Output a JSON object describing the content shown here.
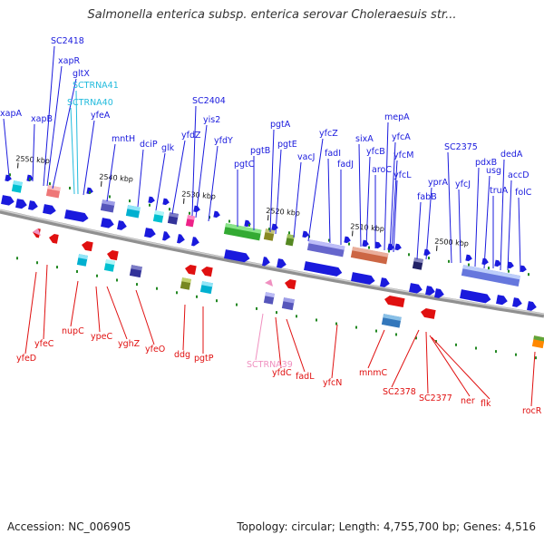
{
  "header": {
    "title": "Salmonella enterica subsp. enterica serovar Choleraesuis str..."
  },
  "footer": {
    "accession": "Accession: NC_006905",
    "summary": "Topology: circular; Length: 4,755,700 bp; Genes: 4,516"
  },
  "colors": {
    "forward": "#1a1add",
    "reverse": "#e01010",
    "trna": "#22bbdd",
    "trna_reverse": "#f090c0",
    "backbone": "#909090",
    "tick": "#228822"
  },
  "scale_ticks": [
    "2550 kbp",
    "2540 kbp",
    "2530 kbp",
    "2520 kbp",
    "2510 kbp",
    "2500 kbp"
  ],
  "forward_labels": [
    "xapA",
    "xapB",
    "SC2418",
    "xapR",
    "gltX",
    "SCTRNA41",
    "SCTRNA40",
    "yfeA",
    "mntH",
    "dciP",
    "glk",
    "yfdZ",
    "SC2404",
    "yis2",
    "yfdY",
    "pgtC",
    "pgtB",
    "pgtA",
    "pgtE",
    "vacJ",
    "yfcZ",
    "fadI",
    "fadJ",
    "sixA",
    "yfcB",
    "aroC",
    "mepA",
    "yfcA",
    "yfcM",
    "yfcL",
    "fabB",
    "yprA",
    "SC2375",
    "yfcJ",
    "pdxB",
    "usg",
    "truA",
    "dedA",
    "accD",
    "folC"
  ],
  "reverse_labels": [
    "yfeD",
    "yfeC",
    "nupC",
    "ypeC",
    "yghZ",
    "yfeO",
    "ddg",
    "pgtP",
    "SCTRNA39",
    "yfdC",
    "fadL",
    "yfcN",
    "mnmC",
    "SC2378",
    "SC2377",
    "ner",
    "flk",
    "rocR"
  ]
}
